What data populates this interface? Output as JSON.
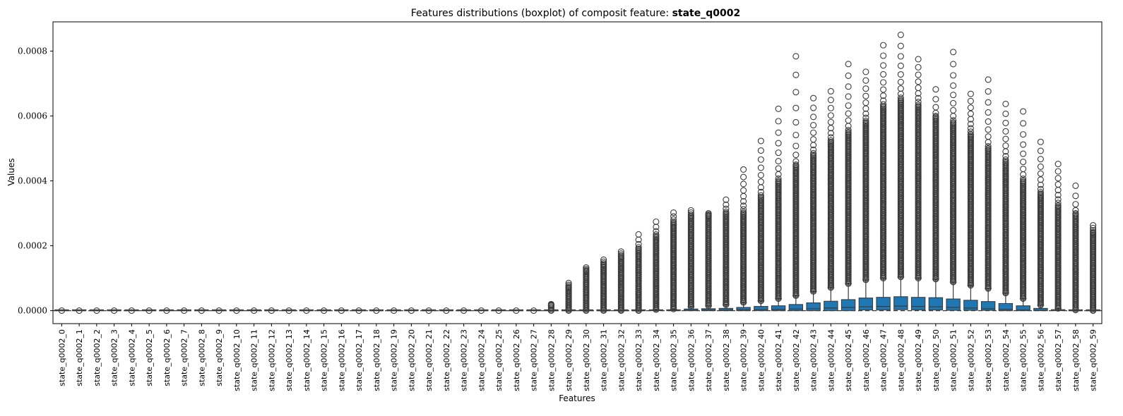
{
  "chart_data": {
    "type": "boxplot",
    "title_prefix": "Features distributions (boxplot) of composit feature: ",
    "title_bold": "state_q0002",
    "xlabel": "Features",
    "ylabel": "Values",
    "ylim": [
      -4e-05,
      0.00089
    ],
    "yticks": [
      "0.0000",
      "0.0002",
      "0.0004",
      "0.0006",
      "0.0008"
    ],
    "ytick_values": [
      0.0,
      0.0002,
      0.0004,
      0.0006,
      0.0008
    ],
    "grid": false,
    "median_line": "dashed horizontal reference at 0",
    "box_color": "#1f77b4",
    "whisker_color": "#3b3b3b",
    "categories": [
      "state_q0002_0",
      "state_q0002_1",
      "state_q0002_2",
      "state_q0002_3",
      "state_q0002_4",
      "state_q0002_5",
      "state_q0002_6",
      "state_q0002_7",
      "state_q0002_8",
      "state_q0002_9",
      "state_q0002_10",
      "state_q0002_11",
      "state_q0002_12",
      "state_q0002_13",
      "state_q0002_14",
      "state_q0002_15",
      "state_q0002_16",
      "state_q0002_17",
      "state_q0002_18",
      "state_q0002_19",
      "state_q0002_20",
      "state_q0002_21",
      "state_q0002_22",
      "state_q0002_23",
      "state_q0002_24",
      "state_q0002_25",
      "state_q0002_26",
      "state_q0002_27",
      "state_q0002_28",
      "state_q0002_29",
      "state_q0002_30",
      "state_q0002_31",
      "state_q0002_32",
      "state_q0002_33",
      "state_q0002_34",
      "state_q0002_35",
      "state_q0002_36",
      "state_q0002_37",
      "state_q0002_38",
      "state_q0002_39",
      "state_q0002_40",
      "state_q0002_41",
      "state_q0002_42",
      "state_q0002_43",
      "state_q0002_44",
      "state_q0002_45",
      "state_q0002_46",
      "state_q0002_47",
      "state_q0002_48",
      "state_q0002_49",
      "state_q0002_50",
      "state_q0002_51",
      "state_q0002_52",
      "state_q0002_53",
      "state_q0002_54",
      "state_q0002_55",
      "state_q0002_56",
      "state_q0002_57",
      "state_q0002_58",
      "state_q0002_59"
    ],
    "q1": [
      0,
      0,
      0,
      0,
      0,
      0,
      0,
      0,
      0,
      0,
      0,
      0,
      0,
      0,
      0,
      0,
      0,
      0,
      0,
      0,
      0,
      0,
      0,
      0,
      0,
      0,
      0,
      0,
      0,
      0,
      0,
      0,
      0,
      0,
      0,
      0,
      0,
      0,
      0,
      0,
      0,
      0,
      0,
      0,
      0,
      0,
      2e-06,
      2e-06,
      3e-06,
      2e-06,
      2e-06,
      1e-06,
      1e-06,
      1e-06,
      0,
      0,
      0,
      0,
      0,
      0
    ],
    "median": [
      0,
      0,
      0,
      0,
      0,
      0,
      0,
      0,
      0,
      0,
      0,
      0,
      0,
      0,
      0,
      0,
      0,
      0,
      0,
      0,
      0,
      0,
      0,
      0,
      0,
      0,
      0,
      0,
      0,
      0,
      0,
      0,
      0,
      0,
      1e-06,
      1e-06,
      1e-06,
      2e-06,
      2e-06,
      3e-06,
      3e-06,
      4e-06,
      5e-06,
      6e-06,
      8e-06,
      1e-05,
      1.2e-05,
      1.3e-05,
      1.4e-05,
      1.3e-05,
      1.2e-05,
      1e-05,
      8e-06,
      6e-06,
      4e-06,
      2e-06,
      1e-06,
      1e-06,
      0,
      0
    ],
    "q3": [
      0,
      0,
      0,
      0,
      0,
      0,
      0,
      0,
      0,
      0,
      0,
      0,
      0,
      0,
      0,
      0,
      0,
      0,
      0,
      0,
      0,
      0,
      0,
      0,
      0,
      0,
      0,
      0,
      0,
      0,
      0,
      0,
      0,
      0,
      1e-06,
      2e-06,
      5e-06,
      6e-06,
      7e-06,
      1e-05,
      1.3e-05,
      1.5e-05,
      1.9e-05,
      2.4e-05,
      2.9e-05,
      3.4e-05,
      3.9e-05,
      4.1e-05,
      4.3e-05,
      4.1e-05,
      4e-05,
      3.6e-05,
      3.2e-05,
      2.8e-05,
      2.2e-05,
      1.5e-05,
      7e-06,
      3e-06,
      1e-06,
      0
    ],
    "whisker_low": [
      0,
      0,
      0,
      0,
      0,
      0,
      0,
      0,
      0,
      0,
      0,
      0,
      0,
      0,
      0,
      0,
      0,
      0,
      0,
      0,
      0,
      0,
      0,
      0,
      0,
      0,
      0,
      0,
      0,
      0,
      0,
      0,
      0,
      0,
      0,
      0,
      0,
      0,
      0,
      0,
      0,
      0,
      0,
      0,
      0,
      0,
      0,
      0,
      0,
      0,
      0,
      0,
      0,
      0,
      0,
      0,
      0,
      0,
      0,
      0
    ],
    "whisker_high": [
      0,
      0,
      0,
      0,
      0,
      0,
      0,
      0,
      0,
      0,
      0,
      0,
      0,
      0,
      0,
      0,
      0,
      0,
      0,
      0,
      0,
      0,
      0,
      0,
      0,
      0,
      0,
      0,
      0,
      0,
      0,
      0,
      0,
      0,
      3e-06,
      5e-06,
      1.2e-05,
      1.5e-05,
      1.8e-05,
      2.5e-05,
      3e-05,
      3.7e-05,
      4.6e-05,
      5.9e-05,
      7.1e-05,
      8.3e-05,
      9.5e-05,
      0.0001,
      0.000104,
      0.0001,
      9.7e-05,
      8.8e-05,
      7.8e-05,
      6.8e-05,
      5.4e-05,
      3.7e-05,
      1.7e-05,
      7e-06,
      2e-06,
      0
    ],
    "flier_max": [
      0,
      0,
      0,
      0,
      0,
      0,
      0,
      0,
      0,
      0,
      0,
      0,
      0,
      0,
      0,
      0,
      0,
      0,
      0,
      0,
      0,
      0,
      0,
      0,
      0,
      0,
      0,
      0,
      2e-05,
      8.5e-05,
      0.000133,
      0.000157,
      0.000182,
      0.000235,
      0.000274,
      0.000302,
      0.000309,
      0.0003,
      0.000342,
      0.000435,
      0.000523,
      0.000622,
      0.000784,
      0.000655,
      0.000676,
      0.00076,
      0.000736,
      0.000818,
      0.00085,
      0.000775,
      0.000682,
      0.000797,
      0.000668,
      0.000712,
      0.000637,
      0.000614,
      0.00052,
      0.000452,
      0.000385,
      0.000263
    ],
    "flier_dense_top": [
      0,
      0,
      0,
      0,
      0,
      0,
      0,
      0,
      0,
      0,
      0,
      0,
      0,
      0,
      0,
      0,
      0,
      0,
      0,
      0,
      0,
      0,
      0,
      0,
      0,
      0,
      0,
      0,
      1.5e-05,
      7e-05,
      0.00012,
      0.00014,
      0.000165,
      0.00019,
      0.00023,
      0.00027,
      0.00029,
      0.00029,
      0.0003,
      0.0003,
      0.00035,
      0.0004,
      0.00045,
      0.00048,
      0.00052,
      0.00055,
      0.00058,
      0.00063,
      0.00065,
      0.00063,
      0.0006,
      0.00058,
      0.00054,
      0.0005,
      0.00046,
      0.0004,
      0.00036,
      0.00032,
      0.0003,
      0.00024
    ]
  }
}
